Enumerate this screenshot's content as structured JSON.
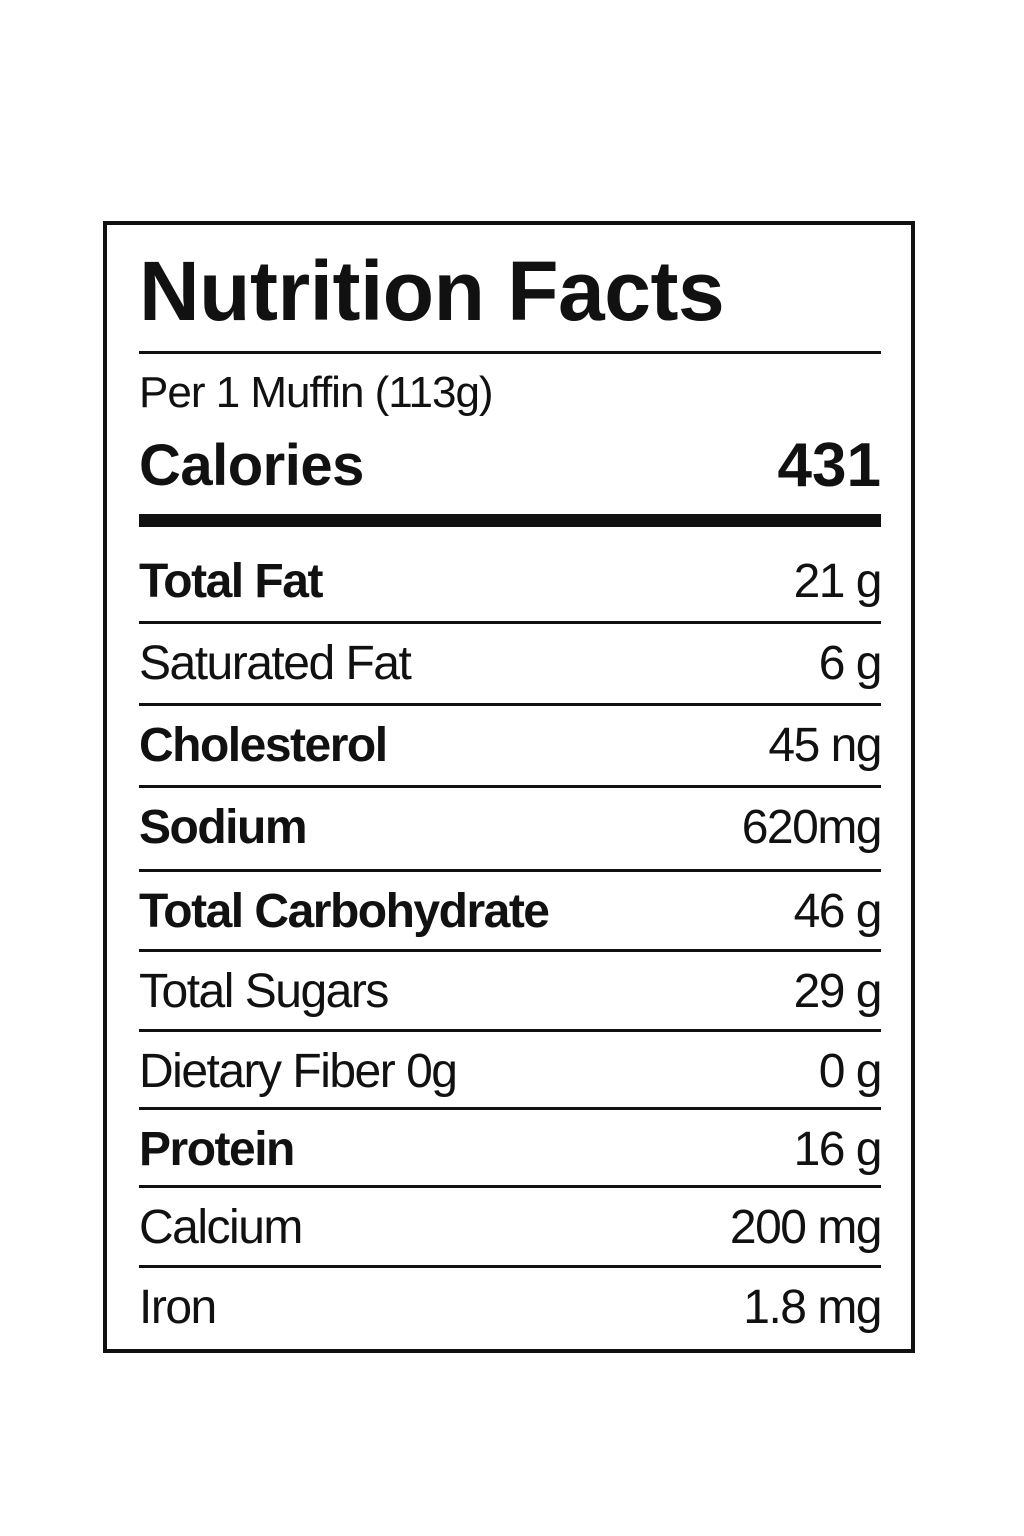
{
  "label": {
    "title": "Nutrition Facts",
    "serving_size": "Per 1 Muffin (113g)",
    "calories_label": "Calories",
    "calories_value": "431",
    "nutrients": [
      {
        "name": "Total Fat",
        "amount": "21 g",
        "bold": true
      },
      {
        "name": "Saturated Fat",
        "amount": "6 g",
        "bold": false
      },
      {
        "name": "Cholesterol",
        "amount": "45 ng",
        "bold": true
      },
      {
        "name": "Sodium",
        "amount": "620mg",
        "bold": true
      },
      {
        "name": "Total Carbohydrate",
        "amount": "46 g",
        "bold": true
      },
      {
        "name": "Total Sugars",
        "amount": "29 g",
        "bold": false
      },
      {
        "name": "Dietary Fiber 0g",
        "amount": "0 g",
        "bold": false
      },
      {
        "name": "Protein",
        "amount": "16 g",
        "bold": true
      },
      {
        "name": "Calcium",
        "amount": "200 mg",
        "bold": false
      },
      {
        "name": "Iron",
        "amount": "1.8 mg",
        "bold": false
      }
    ]
  }
}
